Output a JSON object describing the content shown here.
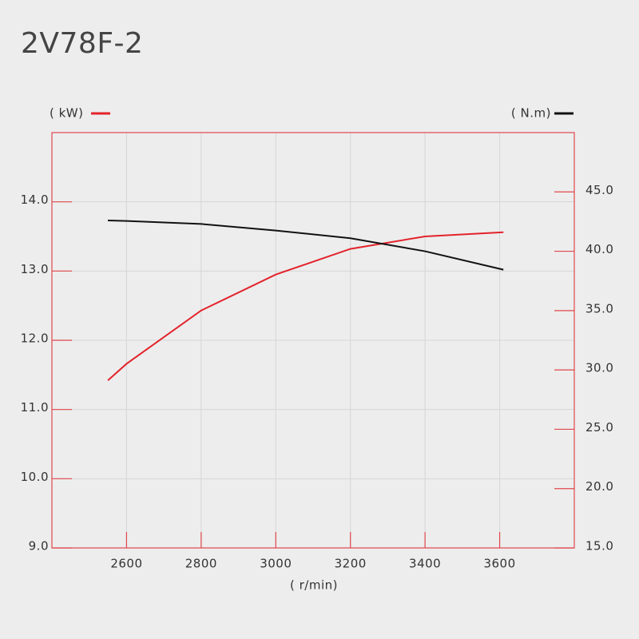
{
  "chart_data": {
    "type": "line",
    "title": "2V78F-2",
    "x_label": "( r/min)",
    "xlim": [
      2400,
      3800
    ],
    "xticks": [
      2600,
      2800,
      3000,
      3200,
      3400,
      3600
    ],
    "ylim": [
      9,
      15
    ],
    "yticks": [
      {
        "value": 9,
        "label": "9.0"
      },
      {
        "value": 10,
        "label": "10.0"
      },
      {
        "value": 11,
        "label": "11.0"
      },
      {
        "value": 12,
        "label": "12.0"
      },
      {
        "value": 13,
        "label": "13.0"
      },
      {
        "value": 14,
        "label": "14.0"
      }
    ],
    "y2lim": [
      15,
      50
    ],
    "y2ticks": [
      {
        "value": 15,
        "label": "15.0"
      },
      {
        "value": 20,
        "label": "20.0"
      },
      {
        "value": 25,
        "label": "25.0"
      },
      {
        "value": 30,
        "label": "30.0"
      },
      {
        "value": 35,
        "label": "35.0"
      },
      {
        "value": 40,
        "label": "40.0"
      },
      {
        "value": 45,
        "label": "45.0"
      }
    ],
    "grid": true,
    "series": [
      {
        "name": "( kW)",
        "color": "#e3232b",
        "x": [
          2550,
          2600,
          2800,
          3000,
          3200,
          3400,
          3610
        ],
        "values": [
          11.42,
          11.66,
          12.43,
          12.95,
          13.32,
          13.5,
          13.56
        ]
      },
      {
        "name": "( N.m)",
        "color": "#111111",
        "axis": "y2",
        "x": [
          2550,
          2600,
          2800,
          3000,
          3200,
          3400,
          3610
        ],
        "values": [
          42.6,
          42.55,
          42.3,
          41.75,
          41.1,
          40.0,
          38.45
        ]
      }
    ]
  }
}
